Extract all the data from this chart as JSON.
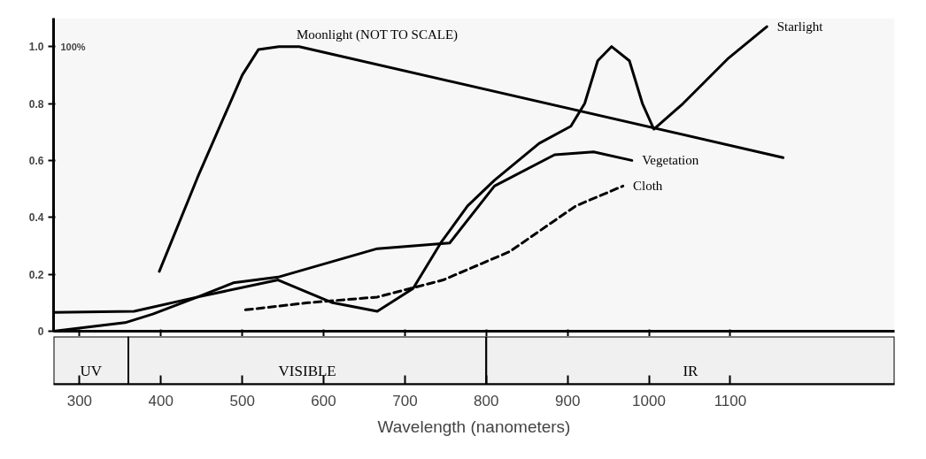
{
  "chart_data": {
    "type": "line",
    "xlabel": "Wavelength (nanometers)",
    "xlim": [
      268,
      1302
    ],
    "xticks": [
      300,
      400,
      500,
      600,
      700,
      800,
      900,
      1000,
      1100
    ],
    "ylim": [
      0,
      1.1
    ],
    "yticks": [
      0,
      0.2,
      0.4,
      0.6,
      0.8,
      {
        "value": 1.0,
        "label": "1.0"
      }
    ],
    "grid": false,
    "series": [
      {
        "name": "Moonlight (NOT TO SCALE)",
        "color": "#000000",
        "line_style": "solid",
        "x": [
          398,
          445,
          500,
          520,
          545,
          570,
          1165
        ],
        "values": [
          0.21,
          0.54,
          0.9,
          0.99,
          1.0,
          1.0,
          0.61
        ]
      },
      {
        "name": "Starlight",
        "color": "#000000",
        "line_style": "solid",
        "x": [
          268,
          367,
          445,
          544,
          611,
          666,
          710,
          744,
          777,
          810,
          865,
          904,
          921,
          937,
          954,
          976,
          992,
          1006,
          1042,
          1098,
          1145
        ],
        "values": [
          0.066,
          0.07,
          0.12,
          0.18,
          0.1,
          0.07,
          0.15,
          0.31,
          0.44,
          0.53,
          0.66,
          0.72,
          0.8,
          0.95,
          1.0,
          0.95,
          0.8,
          0.71,
          0.8,
          0.96,
          1.07
        ]
      },
      {
        "name": "Vegetation",
        "color": "#000000",
        "line_style": "solid",
        "x": [
          268,
          356,
          390,
          445,
          489,
          544,
          666,
          755,
          810,
          884,
          932,
          979
        ],
        "values": [
          0,
          0.03,
          0.06,
          0.12,
          0.17,
          0.19,
          0.29,
          0.31,
          0.51,
          0.62,
          0.63,
          0.6
        ]
      },
      {
        "name": "Cloth",
        "color": "#000000",
        "line_style": "dashed",
        "x": [
          504,
          581,
          666,
          747,
          829,
          910,
          968
        ],
        "values": [
          0.075,
          0.1,
          0.12,
          0.18,
          0.28,
          0.44,
          0.51
        ]
      }
    ],
    "bands": [
      {
        "axis": "x",
        "from": 268,
        "to": 360,
        "label": "UV",
        "color": "#f0f0f0"
      },
      {
        "axis": "x",
        "from": 360,
        "to": 800,
        "label": "VISIBLE",
        "color": "#f0f0f0"
      },
      {
        "axis": "x",
        "from": 800,
        "to": 1302,
        "label": "IR",
        "color": "#f0f0f0"
      }
    ],
    "annotations": [
      "100%"
    ]
  }
}
